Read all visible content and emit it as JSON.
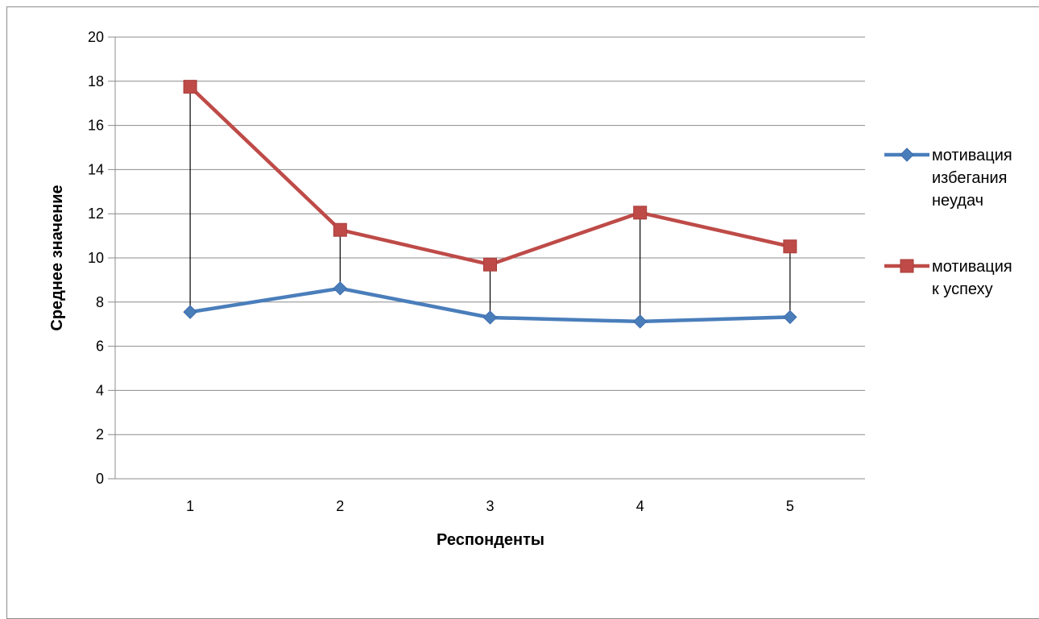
{
  "chart_data": {
    "type": "line",
    "categories": [
      "1",
      "2",
      "3",
      "4",
      "5"
    ],
    "series": [
      {
        "name": "мотивация избегания неудач",
        "name_lines": [
          "мотивация",
          "избегания",
          "неудач"
        ],
        "values": [
          7.55,
          8.62,
          7.3,
          7.12,
          7.32
        ],
        "color": "#4a7ebb",
        "marker": "diamond"
      },
      {
        "name": "мотивация к успеху",
        "name_lines": [
          "мотивация",
          "к успеху"
        ],
        "values": [
          17.75,
          11.27,
          9.7,
          12.05,
          10.52
        ],
        "color": "#be4b48",
        "marker": "square"
      }
    ],
    "high_low_lines": true,
    "xlabel": "Респонденты",
    "ylabel": "Среднее значение",
    "ylim": [
      0,
      20
    ],
    "yticks": [
      "0",
      "2",
      "4",
      "6",
      "8",
      "10",
      "12",
      "14",
      "16",
      "18",
      "20"
    ],
    "grid": "horizontal",
    "legend_position": "right"
  }
}
